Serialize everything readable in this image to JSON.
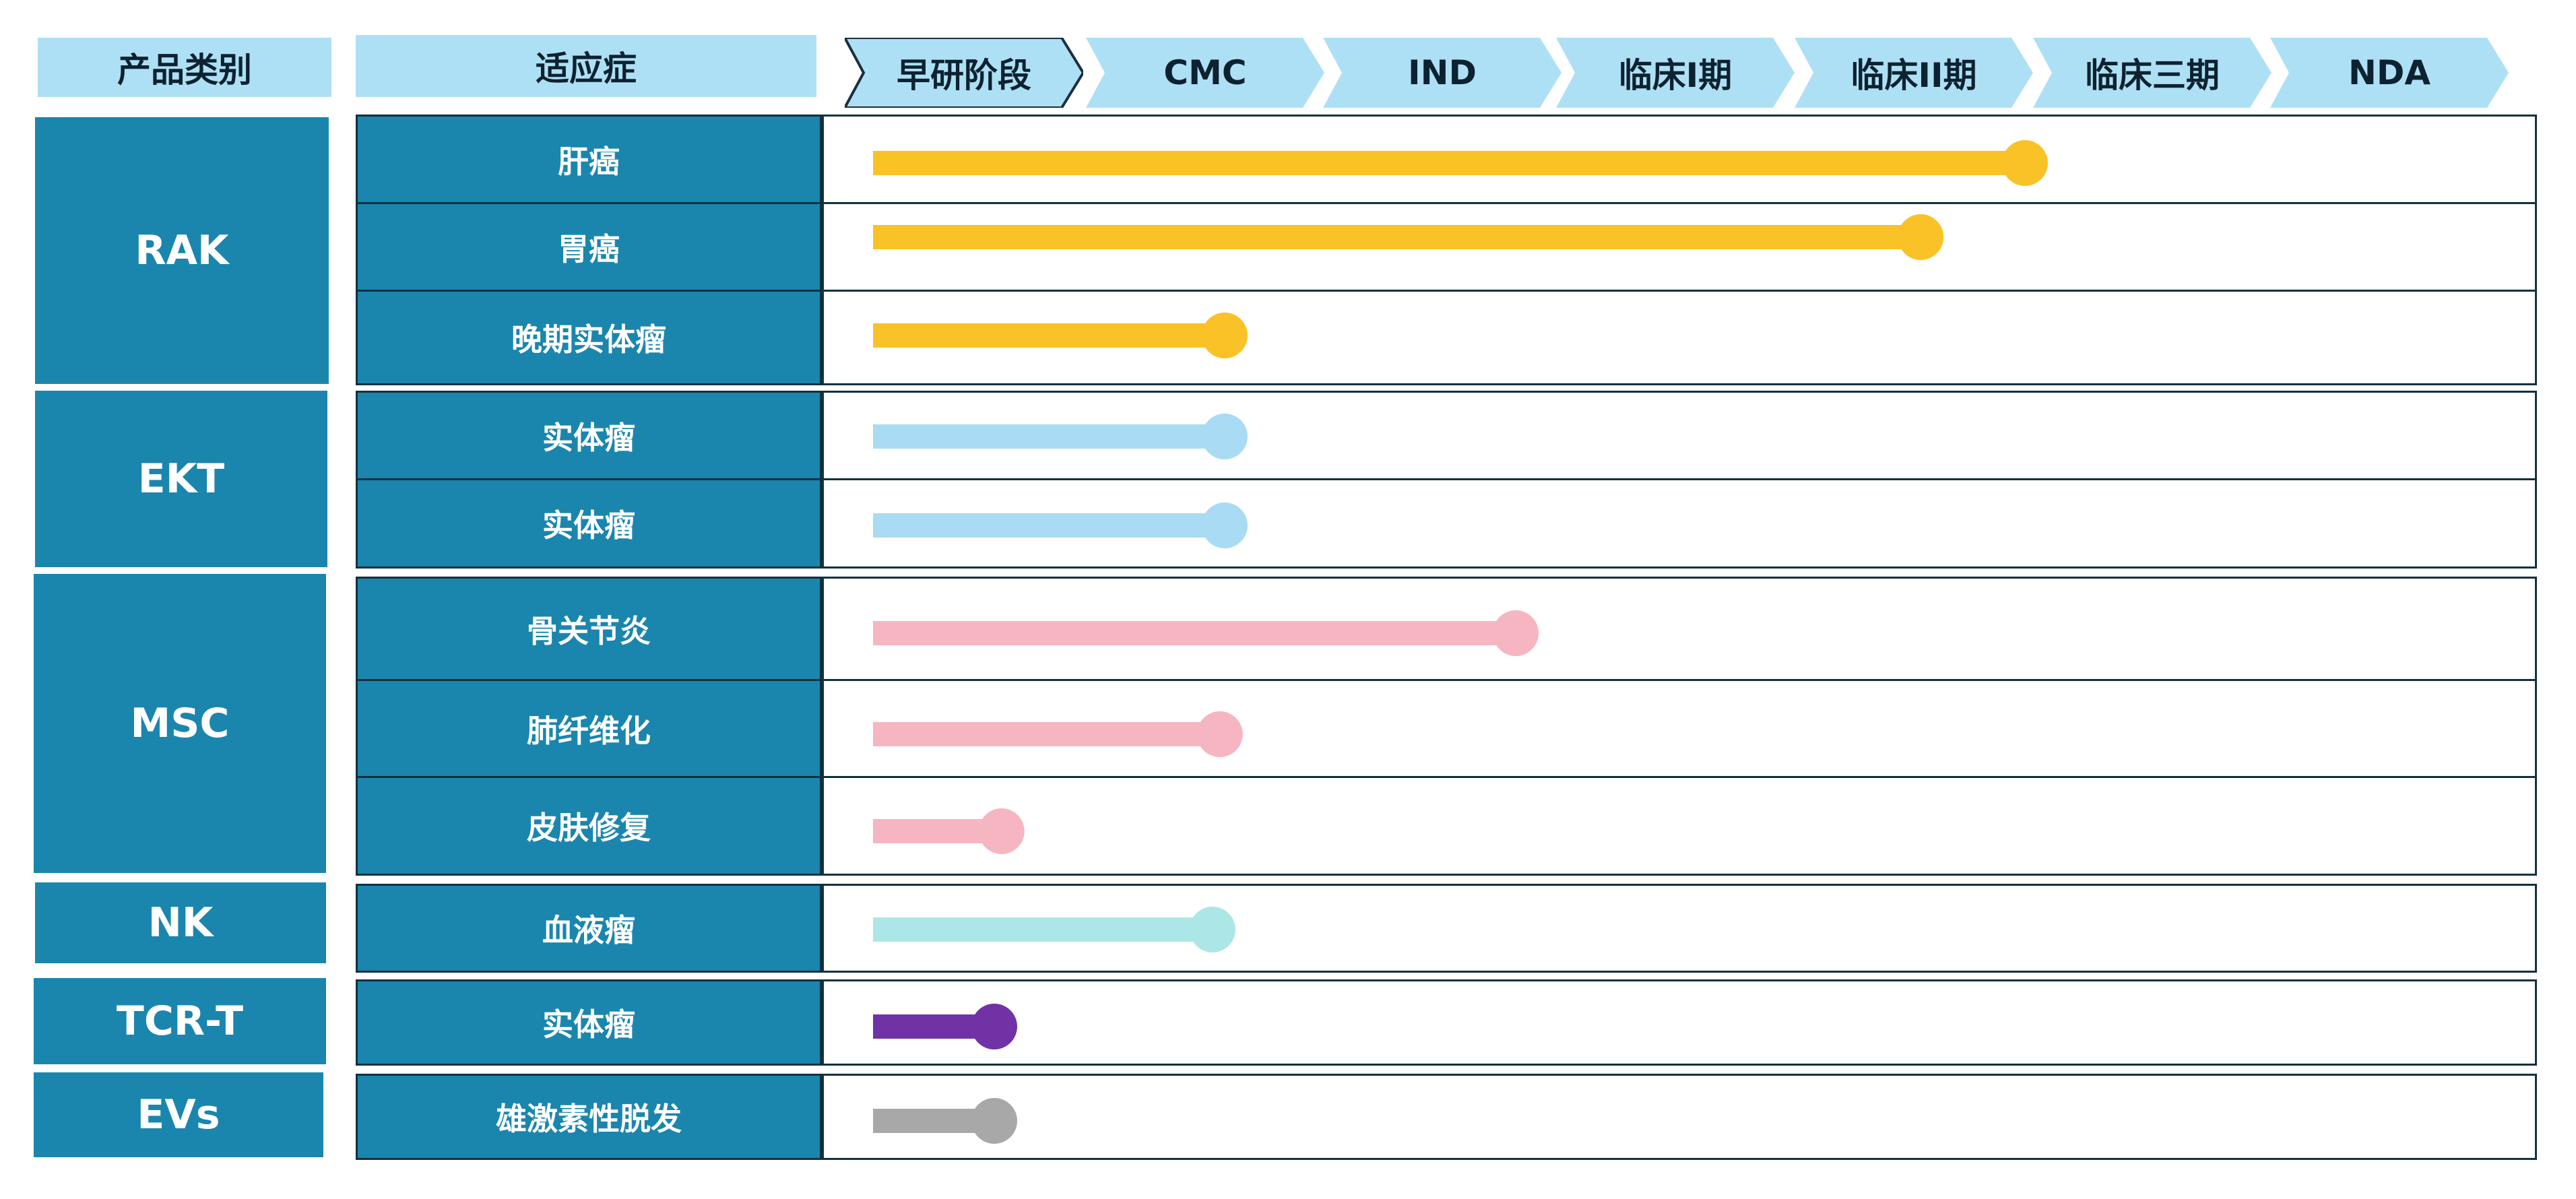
{
  "header": {
    "category": "产品类别",
    "indication": "适应症",
    "stages": [
      "早研阶段",
      "CMC",
      "IND",
      "临床I期",
      "临床II期",
      "临床三期",
      "NDA"
    ]
  },
  "categories": [
    "RAK",
    "EKT",
    "MSC",
    "NK",
    "TCR-T",
    "EVs"
  ],
  "colors": {
    "cell": "#1a86ad",
    "header": "#aee0f5",
    "RAK": "#f9c226",
    "EKT": "#a9dbf4",
    "MSC": "#f6b6c1",
    "NK": "#ade6e6",
    "TCR-T": "#7132a5",
    "EVs": "#a8a8a8"
  },
  "chart_data": {
    "type": "bar",
    "orientation": "horizontal",
    "x_categories": [
      "早研阶段",
      "CMC",
      "IND",
      "临床I期",
      "临床II期",
      "临床三期",
      "NDA"
    ],
    "x_unit": "stage index (0 = 早研阶段 … 6 = NDA)",
    "rows": [
      {
        "category": "RAK",
        "indication": "肝癌",
        "progress": 4.75
      },
      {
        "category": "RAK",
        "indication": "胃癌",
        "progress": 4.32
      },
      {
        "category": "RAK",
        "indication": "晚期实体瘤",
        "progress": 1.45
      },
      {
        "category": "EKT",
        "indication": "实体瘤",
        "progress": 1.45
      },
      {
        "category": "EKT",
        "indication": "实体瘤",
        "progress": 1.45
      },
      {
        "category": "MSC",
        "indication": "骨关节炎",
        "progress": 2.65
      },
      {
        "category": "MSC",
        "indication": "肺纤维化",
        "progress": 1.43
      },
      {
        "category": "MSC",
        "indication": "皮肤修复",
        "progress": 0.53
      },
      {
        "category": "NK",
        "indication": "血液瘤",
        "progress": 1.4
      },
      {
        "category": "TCR-T",
        "indication": "实体瘤",
        "progress": 0.5
      },
      {
        "category": "EVs",
        "indication": "雄激素性脱发",
        "progress": 0.5
      }
    ]
  }
}
